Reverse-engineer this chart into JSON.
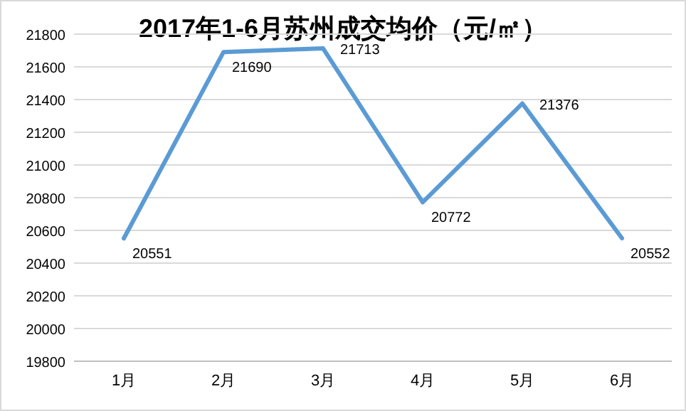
{
  "chart_data": {
    "type": "line",
    "title": "2017年1-6月苏州成交均价（元/㎡）",
    "categories": [
      "1月",
      "2月",
      "3月",
      "4月",
      "5月",
      "6月"
    ],
    "values": [
      20551,
      21690,
      21713,
      20772,
      21376,
      20552
    ],
    "color": "#5b9bd5",
    "ylim": [
      19800,
      21800
    ],
    "yticks": [
      19800,
      20000,
      20200,
      20400,
      20600,
      20800,
      21000,
      21200,
      21400,
      21600,
      21800
    ],
    "grid": "y",
    "data_labels": true
  }
}
